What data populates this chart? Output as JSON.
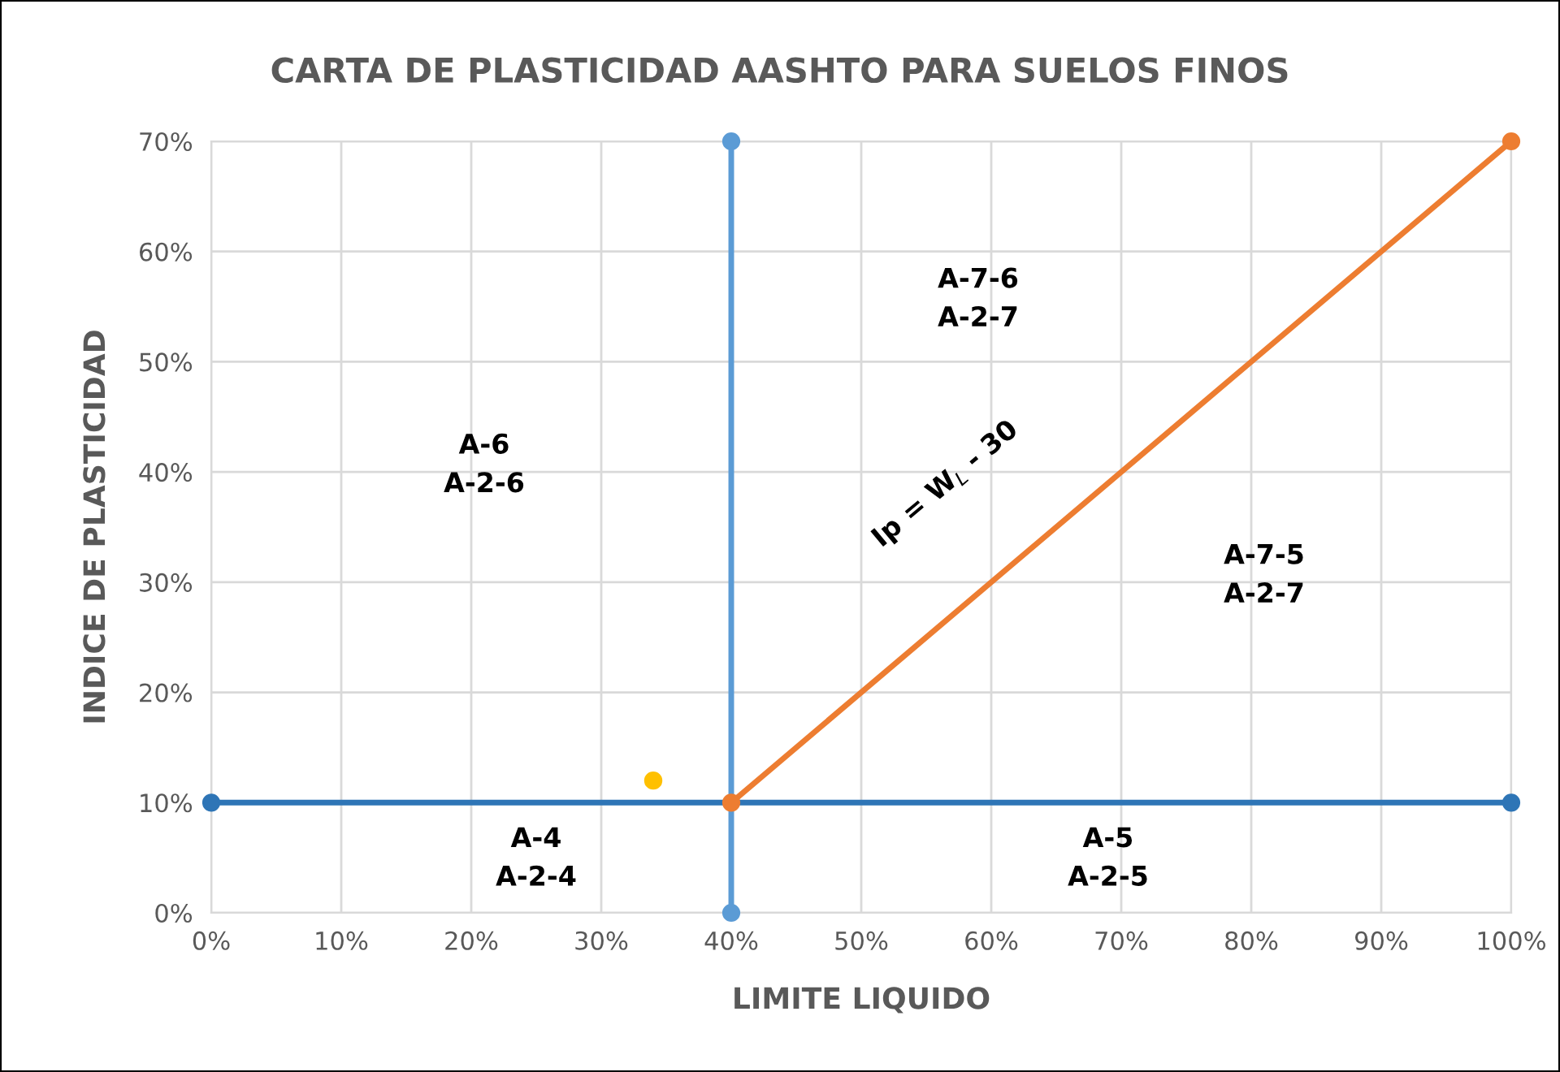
{
  "chart_data": {
    "type": "line",
    "title": "CARTA DE PLASTICIDAD AASHTO PARA SUELOS FINOS",
    "xlabel": "LIMITE LIQUIDO",
    "ylabel": "INDICE DE PLASTICIDAD",
    "series": [
      {
        "x": [
          0,
          100
        ],
        "values": [
          10,
          10
        ],
        "color": "#2e75b6"
      },
      {
        "x": [
          40,
          40
        ],
        "values": [
          0,
          70
        ],
        "color": "#5b9bd5"
      },
      {
        "x": [
          40,
          100
        ],
        "values": [
          10,
          70
        ],
        "color": "#ed7d31"
      },
      {
        "type": "scatter",
        "x": [
          34
        ],
        "values": [
          12
        ],
        "color": "#ffc000"
      }
    ],
    "marker": "circle",
    "grid": true,
    "xlim": [
      0,
      100
    ],
    "xticks": [
      {
        "value": 0,
        "label": "0%"
      },
      {
        "value": 10,
        "label": "10%"
      },
      {
        "value": 20,
        "label": "20%"
      },
      {
        "value": 30,
        "label": "30%"
      },
      {
        "value": 40,
        "label": "40%"
      },
      {
        "value": 50,
        "label": "50%"
      },
      {
        "value": 60,
        "label": "60%"
      },
      {
        "value": 70,
        "label": "70%"
      },
      {
        "value": 80,
        "label": "80%"
      },
      {
        "value": 90,
        "label": "90%"
      },
      {
        "value": 100,
        "label": "100%"
      }
    ],
    "ylim": [
      0,
      70
    ],
    "yticks": [
      {
        "value": 0,
        "label": "0%"
      },
      {
        "value": 10,
        "label": "10%"
      },
      {
        "value": 20,
        "label": "20%"
      },
      {
        "value": 30,
        "label": "30%"
      },
      {
        "value": 40,
        "label": "40%"
      },
      {
        "value": 50,
        "label": "50%"
      },
      {
        "value": 60,
        "label": "60%"
      },
      {
        "value": 70,
        "label": "70%"
      }
    ],
    "annotations": [
      "A-6\nA-2-6",
      "A-7-6\nA-2-7",
      "A-7-5\nA-2-7",
      "A-4\nA-2-4",
      "A-5\nA-2-5",
      "Ip = W$_{L}$ - 30"
    ]
  }
}
